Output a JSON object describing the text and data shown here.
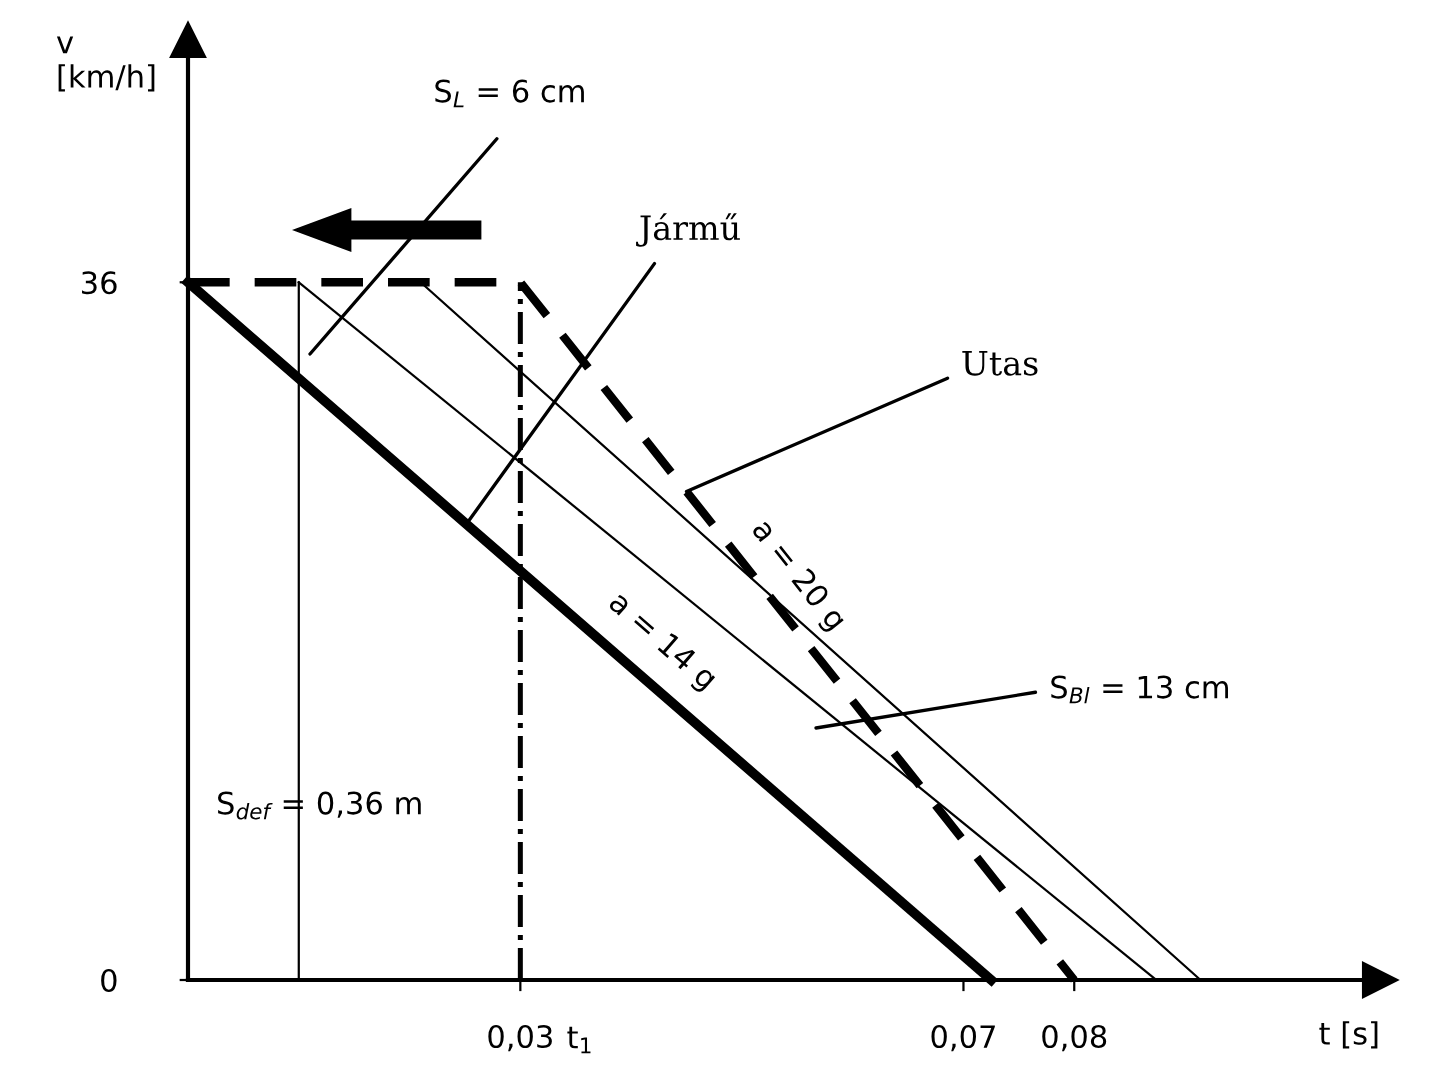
{
  "chart_data": {
    "type": "line",
    "xlabel": "t [s]",
    "ylabel": "v\n[km/h]",
    "xlim": [
      0,
      0.1076
    ],
    "ylim": [
      0,
      48.5
    ],
    "xticks": [
      {
        "value": 0.03,
        "label": "0,03"
      },
      {
        "value": 0.07,
        "label": "0,07"
      },
      {
        "value": 0.08,
        "label": "0,08"
      }
    ],
    "yticks": [
      0,
      36
    ],
    "series": [
      {
        "color": "#000000",
        "line_style": "solid",
        "x": [
          0,
          0.0725
        ],
        "values": [
          36,
          0
        ]
      },
      {
        "color": "#000000",
        "line_style": "dashed",
        "x": [
          0,
          0.03,
          0.08
        ],
        "values": [
          36,
          36,
          0
        ]
      },
      {
        "color": "#000000",
        "line_style": "solid",
        "x": [
          0.01,
          0.0874
        ],
        "values": [
          36,
          0
        ]
      },
      {
        "color": "#000000",
        "line_style": "solid",
        "x": [
          0.021,
          0.0914
        ],
        "values": [
          36,
          0
        ]
      }
    ],
    "ref_lines": [
      {
        "axis": "x",
        "value": 0.01,
        "color": "#000000",
        "line_style": "solid"
      },
      {
        "axis": "x",
        "value": 0.03,
        "color": "#000000",
        "line_style": "dashdot"
      }
    ],
    "grid": false,
    "legend": false,
    "marker": "none",
    "annotations": [
      "S$_{L}$ = 6 cm",
      {
        "text": "Jármű",
        "x": 0.0251,
        "y": 23.5
      },
      {
        "text": "Utas",
        "x": 0.045,
        "y": 25.2
      },
      "S$_{Bl}$ = 13 cm",
      "a = 20 g",
      "a = 14 g",
      "S$_{def}$ = 0,36 m",
      "t$_{1}$"
    ]
  }
}
